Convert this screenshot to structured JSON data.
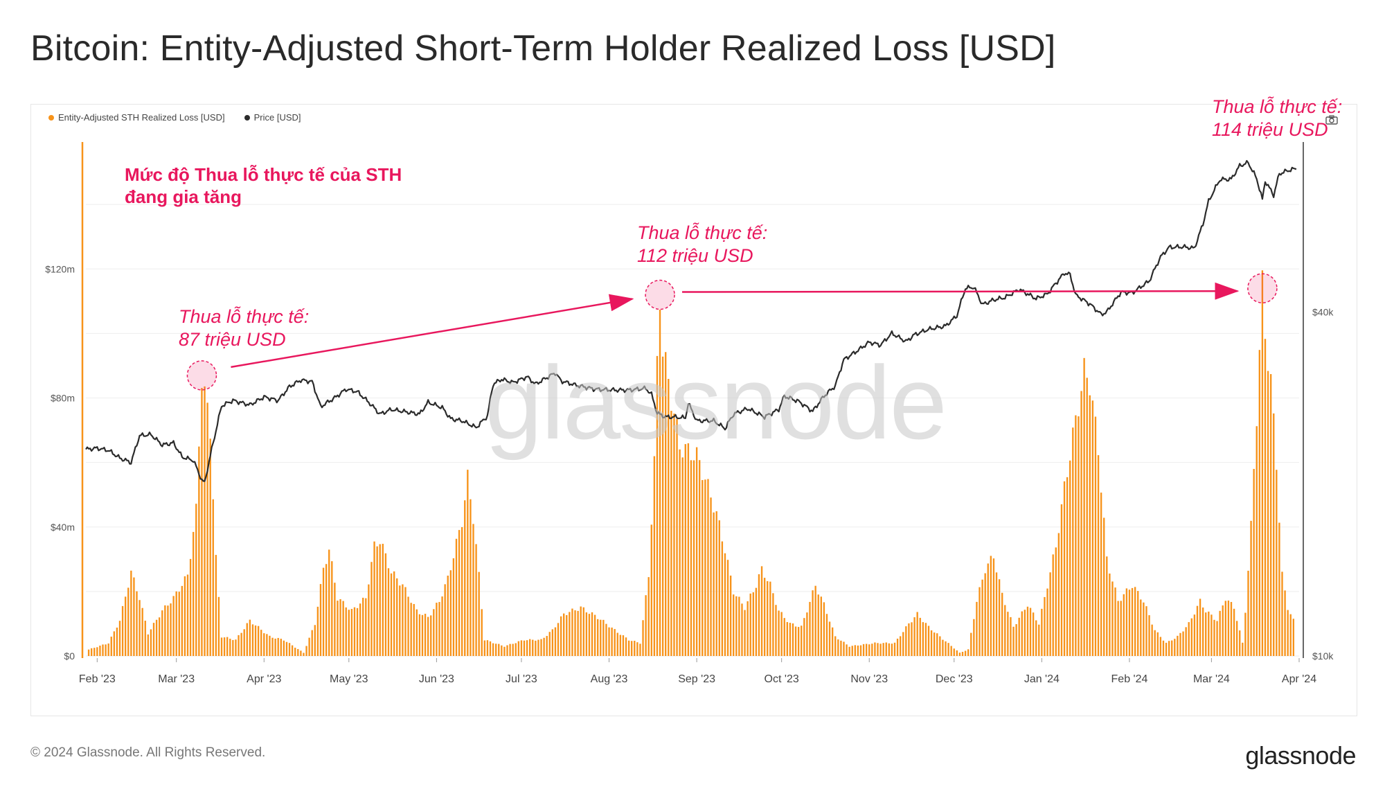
{
  "page": {
    "title": "Bitcoin: Entity-Adjusted Short-Term Holder Realized Loss [USD]",
    "copyright": "© 2024 Glassnode. All Rights Reserved.",
    "brand": "glassnode",
    "watermark": "glassnode"
  },
  "colors": {
    "loss": "#f7931a",
    "price": "#2b2b2b",
    "annotation": "#e8175d"
  },
  "annotations": {
    "headline_line1": "Mức độ Thua lỗ thực tế của STH",
    "headline_line2": "đang gia tăng",
    "peak1_line1": "Thua lỗ thực tế:",
    "peak1_line2": "87 triệu USD",
    "peak2_line1": "Thua lỗ thực tế:",
    "peak2_line2": "112 triệu USD",
    "peak3_line1": "Thua lỗ thực tế:",
    "peak3_line2": "114 triệu USD"
  },
  "icons": {
    "screenshot": "camera-icon"
  },
  "chart_data": {
    "type": "bar",
    "legend": [
      {
        "name": "Entity-Adjusted STH Realized Loss [USD]",
        "color": "#f7931a"
      },
      {
        "name": "Price [USD]",
        "color": "#2b2b2b"
      }
    ],
    "x_range": [
      "2023-01-28",
      "2024-04-01"
    ],
    "x_ticks": [
      {
        "date": "2023-02-01",
        "label": "Feb '23"
      },
      {
        "date": "2023-03-01",
        "label": "Mar '23"
      },
      {
        "date": "2023-04-01",
        "label": "Apr '23"
      },
      {
        "date": "2023-05-01",
        "label": "May '23"
      },
      {
        "date": "2023-06-01",
        "label": "Jun '23"
      },
      {
        "date": "2023-07-01",
        "label": "Jul '23"
      },
      {
        "date": "2023-08-01",
        "label": "Aug '23"
      },
      {
        "date": "2023-09-01",
        "label": "Sep '23"
      },
      {
        "date": "2023-10-01",
        "label": "Oct '23"
      },
      {
        "date": "2023-11-01",
        "label": "Nov '23"
      },
      {
        "date": "2023-12-01",
        "label": "Dec '23"
      },
      {
        "date": "2024-01-01",
        "label": "Jan '24"
      },
      {
        "date": "2024-02-01",
        "label": "Feb '24"
      },
      {
        "date": "2024-03-01",
        "label": "Mar '24"
      },
      {
        "date": "2024-04-01",
        "label": "Apr '24"
      }
    ],
    "y_left": {
      "label": "",
      "range": [
        0,
        160
      ],
      "unit": "million USD",
      "ticks": [
        {
          "v": 0,
          "label": "$0"
        },
        {
          "v": 40,
          "label": "$40m"
        },
        {
          "v": 80,
          "label": "$80m"
        },
        {
          "v": 120,
          "label": "$120m"
        }
      ]
    },
    "y_right": {
      "scale": "log",
      "range": [
        10000,
        80000
      ],
      "ticks": [
        {
          "v": 10000,
          "label": "$10k"
        },
        {
          "v": 40000,
          "label": "$40k"
        }
      ]
    },
    "loss_keyframes": [
      [
        "2023-01-29",
        2
      ],
      [
        "2023-02-05",
        4
      ],
      [
        "2023-02-09",
        11
      ],
      [
        "2023-02-13",
        26
      ],
      [
        "2023-02-16",
        18
      ],
      [
        "2023-02-19",
        7
      ],
      [
        "2023-02-24",
        14
      ],
      [
        "2023-02-28",
        18
      ],
      [
        "2023-03-05",
        25
      ],
      [
        "2023-03-08",
        45
      ],
      [
        "2023-03-10",
        87
      ],
      [
        "2023-03-13",
        70
      ],
      [
        "2023-03-15",
        30
      ],
      [
        "2023-03-17",
        6
      ],
      [
        "2023-03-22",
        5
      ],
      [
        "2023-03-27",
        11
      ],
      [
        "2023-04-03",
        6
      ],
      [
        "2023-04-08",
        5
      ],
      [
        "2023-04-15",
        1
      ],
      [
        "2023-04-19",
        10
      ],
      [
        "2023-04-22",
        27
      ],
      [
        "2023-04-24",
        33
      ],
      [
        "2023-04-27",
        18
      ],
      [
        "2023-05-02",
        14
      ],
      [
        "2023-05-07",
        18
      ],
      [
        "2023-05-10",
        34
      ],
      [
        "2023-05-12",
        36
      ],
      [
        "2023-05-16",
        26
      ],
      [
        "2023-05-20",
        22
      ],
      [
        "2023-05-25",
        14
      ],
      [
        "2023-05-29",
        12
      ],
      [
        "2023-06-02",
        17
      ],
      [
        "2023-06-05",
        24
      ],
      [
        "2023-06-10",
        42
      ],
      [
        "2023-06-12",
        55
      ],
      [
        "2023-06-14",
        43
      ],
      [
        "2023-06-16",
        25
      ],
      [
        "2023-06-18",
        5
      ],
      [
        "2023-06-25",
        3
      ],
      [
        "2023-07-02",
        5
      ],
      [
        "2023-07-08",
        5
      ],
      [
        "2023-07-12",
        8
      ],
      [
        "2023-07-16",
        13
      ],
      [
        "2023-07-22",
        15
      ],
      [
        "2023-07-28",
        12
      ],
      [
        "2023-08-03",
        8
      ],
      [
        "2023-08-08",
        5
      ],
      [
        "2023-08-12",
        4
      ],
      [
        "2023-08-15",
        25
      ],
      [
        "2023-08-17",
        60
      ],
      [
        "2023-08-18",
        90
      ],
      [
        "2023-08-19",
        112
      ],
      [
        "2023-08-20",
        95
      ],
      [
        "2023-08-23",
        80
      ],
      [
        "2023-08-26",
        65
      ],
      [
        "2023-09-01",
        62
      ],
      [
        "2023-09-04",
        55
      ],
      [
        "2023-09-08",
        44
      ],
      [
        "2023-09-11",
        33
      ],
      [
        "2023-09-14",
        20
      ],
      [
        "2023-09-18",
        15
      ],
      [
        "2023-09-22",
        22
      ],
      [
        "2023-09-24",
        27
      ],
      [
        "2023-09-27",
        22
      ],
      [
        "2023-09-30",
        14
      ],
      [
        "2023-10-04",
        10
      ],
      [
        "2023-10-08",
        9
      ],
      [
        "2023-10-13",
        22
      ],
      [
        "2023-10-16",
        16
      ],
      [
        "2023-10-20",
        6
      ],
      [
        "2023-10-25",
        3
      ],
      [
        "2023-11-03",
        4
      ],
      [
        "2023-11-10",
        4
      ],
      [
        "2023-11-15",
        10
      ],
      [
        "2023-11-18",
        13
      ],
      [
        "2023-11-22",
        9
      ],
      [
        "2023-11-26",
        6
      ],
      [
        "2023-12-03",
        1
      ],
      [
        "2023-12-06",
        2
      ],
      [
        "2023-12-09",
        17
      ],
      [
        "2023-12-12",
        27
      ],
      [
        "2023-12-15",
        31
      ],
      [
        "2023-12-18",
        19
      ],
      [
        "2023-12-22",
        9
      ],
      [
        "2023-12-27",
        16
      ],
      [
        "2023-12-31",
        10
      ],
      [
        "2024-01-03",
        22
      ],
      [
        "2024-01-06",
        34
      ],
      [
        "2024-01-09",
        52
      ],
      [
        "2024-01-12",
        68
      ],
      [
        "2024-01-16",
        88
      ],
      [
        "2024-01-18",
        85
      ],
      [
        "2024-01-21",
        64
      ],
      [
        "2024-01-24",
        30
      ],
      [
        "2024-01-28",
        17
      ],
      [
        "2024-02-02",
        22
      ],
      [
        "2024-02-06",
        17
      ],
      [
        "2024-02-10",
        8
      ],
      [
        "2024-02-14",
        4
      ],
      [
        "2024-02-18",
        6
      ],
      [
        "2024-02-22",
        10
      ],
      [
        "2024-02-26",
        17
      ],
      [
        "2024-02-28",
        14
      ],
      [
        "2024-03-03",
        11
      ],
      [
        "2024-03-06",
        18
      ],
      [
        "2024-03-09",
        15
      ],
      [
        "2024-03-12",
        4
      ],
      [
        "2024-03-13",
        14
      ],
      [
        "2024-03-15",
        40
      ],
      [
        "2024-03-17",
        75
      ],
      [
        "2024-03-19",
        114
      ],
      [
        "2024-03-20",
        100
      ],
      [
        "2024-03-22",
        85
      ],
      [
        "2024-03-24",
        60
      ],
      [
        "2024-03-26",
        25
      ],
      [
        "2024-03-28",
        15
      ],
      [
        "2024-03-30",
        11
      ]
    ],
    "price_keyframes": [
      [
        "2023-01-28",
        23000
      ],
      [
        "2023-02-01",
        23100
      ],
      [
        "2023-02-05",
        22900
      ],
      [
        "2023-02-09",
        22200
      ],
      [
        "2023-02-13",
        21800
      ],
      [
        "2023-02-16",
        24300
      ],
      [
        "2023-02-20",
        24400
      ],
      [
        "2023-02-24",
        23400
      ],
      [
        "2023-02-28",
        23600
      ],
      [
        "2023-03-03",
        22300
      ],
      [
        "2023-03-07",
        22000
      ],
      [
        "2023-03-10",
        20300
      ],
      [
        "2023-03-11",
        20100
      ],
      [
        "2023-03-13",
        22400
      ],
      [
        "2023-03-15",
        24800
      ],
      [
        "2023-03-17",
        27400
      ],
      [
        "2023-03-21",
        28000
      ],
      [
        "2023-03-27",
        27500
      ],
      [
        "2023-04-01",
        28400
      ],
      [
        "2023-04-06",
        28000
      ],
      [
        "2023-04-10",
        29600
      ],
      [
        "2023-04-14",
        30400
      ],
      [
        "2023-04-18",
        30200
      ],
      [
        "2023-04-21",
        27300
      ],
      [
        "2023-04-26",
        28300
      ],
      [
        "2023-04-30",
        29300
      ],
      [
        "2023-05-04",
        29000
      ],
      [
        "2023-05-08",
        27800
      ],
      [
        "2023-05-12",
        26500
      ],
      [
        "2023-05-16",
        27000
      ],
      [
        "2023-05-20",
        26800
      ],
      [
        "2023-05-26",
        26500
      ],
      [
        "2023-05-29",
        27800
      ],
      [
        "2023-06-03",
        27200
      ],
      [
        "2023-06-06",
        26000
      ],
      [
        "2023-06-10",
        25800
      ],
      [
        "2023-06-15",
        25100
      ],
      [
        "2023-06-19",
        26300
      ],
      [
        "2023-06-21",
        29900
      ],
      [
        "2023-06-24",
        30500
      ],
      [
        "2023-06-28",
        30100
      ],
      [
        "2023-07-03",
        30800
      ],
      [
        "2023-07-06",
        29900
      ],
      [
        "2023-07-13",
        31300
      ],
      [
        "2023-07-15",
        30300
      ],
      [
        "2023-07-20",
        29800
      ],
      [
        "2023-07-27",
        29300
      ],
      [
        "2023-08-03",
        29200
      ],
      [
        "2023-08-08",
        29200
      ],
      [
        "2023-08-14",
        29400
      ],
      [
        "2023-08-16",
        28700
      ],
      [
        "2023-08-18",
        26600
      ],
      [
        "2023-08-21",
        26200
      ],
      [
        "2023-08-24",
        26200
      ],
      [
        "2023-08-28",
        26100
      ],
      [
        "2023-08-29",
        27700
      ],
      [
        "2023-09-01",
        25800
      ],
      [
        "2023-09-07",
        25800
      ],
      [
        "2023-09-11",
        25000
      ],
      [
        "2023-09-14",
        26500
      ],
      [
        "2023-09-19",
        27100
      ],
      [
        "2023-09-25",
        26200
      ],
      [
        "2023-09-30",
        27000
      ],
      [
        "2023-10-02",
        28500
      ],
      [
        "2023-10-07",
        27900
      ],
      [
        "2023-10-12",
        26800
      ],
      [
        "2023-10-16",
        28500
      ],
      [
        "2023-10-20",
        29700
      ],
      [
        "2023-10-23",
        33000
      ],
      [
        "2023-10-27",
        34000
      ],
      [
        "2023-11-01",
        35400
      ],
      [
        "2023-11-05",
        35000
      ],
      [
        "2023-11-09",
        36700
      ],
      [
        "2023-11-14",
        35500
      ],
      [
        "2023-11-17",
        36500
      ],
      [
        "2023-11-22",
        37300
      ],
      [
        "2023-11-28",
        37800
      ],
      [
        "2023-12-02",
        39400
      ],
      [
        "2023-12-05",
        44000
      ],
      [
        "2023-12-08",
        44200
      ],
      [
        "2023-12-11",
        41200
      ],
      [
        "2023-12-15",
        42000
      ],
      [
        "2023-12-19",
        42400
      ],
      [
        "2023-12-24",
        43800
      ],
      [
        "2023-12-30",
        42200
      ],
      [
        "2024-01-03",
        43000
      ],
      [
        "2024-01-09",
        46800
      ],
      [
        "2024-01-11",
        46500
      ],
      [
        "2024-01-13",
        42800
      ],
      [
        "2024-01-18",
        41300
      ],
      [
        "2024-01-22",
        39600
      ],
      [
        "2024-01-24",
        40000
      ],
      [
        "2024-01-29",
        43300
      ],
      [
        "2024-02-02",
        43200
      ],
      [
        "2024-02-08",
        45300
      ],
      [
        "2024-02-12",
        49900
      ],
      [
        "2024-02-15",
        51900
      ],
      [
        "2024-02-20",
        52000
      ],
      [
        "2024-02-24",
        51700
      ],
      [
        "2024-02-27",
        57000
      ],
      [
        "2024-02-29",
        62500
      ],
      [
        "2024-03-04",
        68200
      ],
      [
        "2024-03-08",
        68300
      ],
      [
        "2024-03-11",
        72100
      ],
      [
        "2024-03-14",
        73000
      ],
      [
        "2024-03-17",
        68400
      ],
      [
        "2024-03-19",
        62900
      ],
      [
        "2024-03-20",
        67800
      ],
      [
        "2024-03-23",
        64000
      ],
      [
        "2024-03-25",
        69800
      ],
      [
        "2024-03-28",
        70700
      ],
      [
        "2024-03-31",
        71300
      ]
    ]
  }
}
